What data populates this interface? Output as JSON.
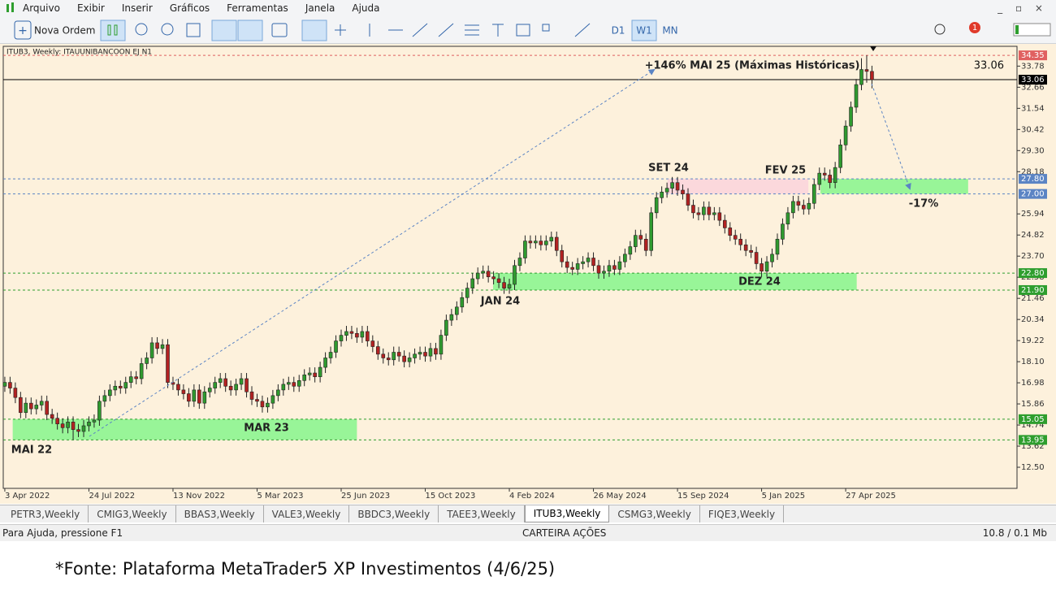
{
  "menu": [
    "Arquivo",
    "Exibir",
    "Inserir",
    "Gráficos",
    "Ferramentas",
    "Janela",
    "Ajuda"
  ],
  "toolbar": {
    "new_order": "Nova Ordem",
    "timeframes": [
      "D1",
      "W1",
      "MN"
    ],
    "notifications": "1"
  },
  "chart_data": {
    "type": "candlestick",
    "title": "ITUB3, Weekly:  ITAUUNIBANCOON  EJ  N1",
    "up_color": "#2f9a2f",
    "down_color": "#b22222",
    "open": [
      16.8,
      17.0,
      16.7,
      16.2,
      15.4,
      15.9,
      15.6,
      15.8,
      16.0,
      15.3,
      15.1,
      14.8,
      14.6,
      14.9,
      14.5,
      14.4,
      14.7,
      14.9,
      15.0,
      16.0,
      16.3,
      16.6,
      16.8,
      16.7,
      17.0,
      17.3,
      17.2,
      18.0,
      18.3,
      19.1,
      18.8,
      19.0,
      17.0,
      16.9,
      16.6,
      16.4,
      16.0,
      16.6,
      15.9,
      16.5,
      16.7,
      17.0,
      17.2,
      16.8,
      16.6,
      16.9,
      17.2,
      16.5,
      16.1,
      16.0,
      15.7,
      15.9,
      16.3,
      16.6,
      16.9,
      17.0,
      16.8,
      17.1,
      17.4,
      17.5,
      17.3,
      17.8,
      18.3,
      18.6,
      19.2,
      19.5,
      19.7,
      19.6,
      19.4,
      19.7,
      19.2,
      18.9,
      18.5,
      18.3,
      18.2,
      18.6,
      18.4,
      18.1,
      18.3,
      18.5,
      18.6,
      18.4,
      18.8,
      18.5,
      19.5,
      20.3,
      20.6,
      21.0,
      21.5,
      22.0,
      22.5,
      22.8,
      22.9,
      22.6,
      22.5,
      22.3,
      22.0,
      22.2,
      23.2,
      23.6,
      24.5,
      24.4,
      24.5,
      24.3,
      24.5,
      24.7,
      24.0,
      23.4,
      23.1,
      23.0,
      23.3,
      23.4,
      23.6,
      23.2,
      22.8,
      22.9,
      23.2,
      23.0,
      23.4,
      23.8,
      24.2,
      24.8,
      24.6,
      24.0,
      26.0,
      26.8,
      27.1,
      27.3,
      27.6,
      27.2,
      27.0,
      26.4,
      26.0,
      25.9,
      26.3,
      25.9,
      26.0,
      25.6,
      25.2,
      24.8,
      24.6,
      24.3,
      24.0,
      23.9,
      23.3,
      22.9,
      23.4,
      23.8,
      24.6,
      25.4,
      26.0,
      26.6,
      26.4,
      26.2,
      26.5,
      27.5,
      28.1,
      28.0,
      27.6,
      28.4,
      29.6,
      30.6,
      31.6,
      32.8,
      33.6,
      33.5
    ],
    "high": [
      17.3,
      17.3,
      17.0,
      16.5,
      16.2,
      16.2,
      16.1,
      16.3,
      16.3,
      15.6,
      15.4,
      15.1,
      15.2,
      15.2,
      14.8,
      15.0,
      15.2,
      15.3,
      16.3,
      16.6,
      16.9,
      17.1,
      17.1,
      17.3,
      17.6,
      17.6,
      18.3,
      18.6,
      19.4,
      19.4,
      19.3,
      19.3,
      17.3,
      17.2,
      16.9,
      16.7,
      16.9,
      16.9,
      16.8,
      17.0,
      17.3,
      17.5,
      17.5,
      17.1,
      17.2,
      17.5,
      17.5,
      16.8,
      16.4,
      16.3,
      16.2,
      16.6,
      16.9,
      17.2,
      17.3,
      17.3,
      17.4,
      17.7,
      17.8,
      17.8,
      18.1,
      18.6,
      18.9,
      19.5,
      19.8,
      20.0,
      20.0,
      19.9,
      20.0,
      20.0,
      19.5,
      19.2,
      18.8,
      18.6,
      18.9,
      18.9,
      18.7,
      18.6,
      18.8,
      18.9,
      18.9,
      19.1,
      19.1,
      19.8,
      20.6,
      20.9,
      21.3,
      21.8,
      22.3,
      22.8,
      23.1,
      23.2,
      23.2,
      22.9,
      22.8,
      22.6,
      22.5,
      23.5,
      23.9,
      24.8,
      24.8,
      24.8,
      24.8,
      24.8,
      25.0,
      25.0,
      24.3,
      23.7,
      23.4,
      23.6,
      23.7,
      23.9,
      23.9,
      23.5,
      23.2,
      23.5,
      23.5,
      23.7,
      24.1,
      24.5,
      25.1,
      25.1,
      24.9,
      26.3,
      27.1,
      27.4,
      27.6,
      27.9,
      27.9,
      27.5,
      27.3,
      26.7,
      26.3,
      26.6,
      26.6,
      26.3,
      26.3,
      25.9,
      25.5,
      25.1,
      24.9,
      24.6,
      24.3,
      24.2,
      23.6,
      23.7,
      24.1,
      24.9,
      25.7,
      26.3,
      26.9,
      26.9,
      26.7,
      26.8,
      27.8,
      28.4,
      28.4,
      28.3,
      28.7,
      29.9,
      30.9,
      31.9,
      33.1,
      34.2,
      34.35,
      33.8
    ],
    "low": [
      16.5,
      16.4,
      15.9,
      15.1,
      15.1,
      15.3,
      15.3,
      15.5,
      15.0,
      14.8,
      14.5,
      14.3,
      14.3,
      13.95,
      14.1,
      14.1,
      14.4,
      14.6,
      14.7,
      15.7,
      16.0,
      16.3,
      16.4,
      16.4,
      16.7,
      16.9,
      16.9,
      17.7,
      18.0,
      18.5,
      18.5,
      16.7,
      16.6,
      16.3,
      16.1,
      15.7,
      15.7,
      15.6,
      15.6,
      16.2,
      16.4,
      16.7,
      16.5,
      16.3,
      16.3,
      16.6,
      16.2,
      15.8,
      15.7,
      15.4,
      15.4,
      15.6,
      16.0,
      16.3,
      16.6,
      16.5,
      16.5,
      16.8,
      17.1,
      17.0,
      17.0,
      17.5,
      18.0,
      18.3,
      18.9,
      19.2,
      19.3,
      19.1,
      19.1,
      18.9,
      18.6,
      18.2,
      18.0,
      17.9,
      17.9,
      18.1,
      17.8,
      17.8,
      18.0,
      18.2,
      18.1,
      18.1,
      18.2,
      18.2,
      19.2,
      20.0,
      20.3,
      20.7,
      21.2,
      21.7,
      22.2,
      22.5,
      22.3,
      22.2,
      22.0,
      21.7,
      21.7,
      21.9,
      22.9,
      23.3,
      24.1,
      24.1,
      24.0,
      24.0,
      24.2,
      23.7,
      23.1,
      22.8,
      22.7,
      22.7,
      23.0,
      23.1,
      22.9,
      22.5,
      22.5,
      22.6,
      22.7,
      22.7,
      23.1,
      23.5,
      23.9,
      24.3,
      23.7,
      23.7,
      25.7,
      26.5,
      26.8,
      27.0,
      26.9,
      26.7,
      26.1,
      25.7,
      25.6,
      25.6,
      25.6,
      25.6,
      25.3,
      24.9,
      24.5,
      24.3,
      24.0,
      23.7,
      23.6,
      23.0,
      22.6,
      22.6,
      23.1,
      23.5,
      24.3,
      25.1,
      25.7,
      26.1,
      25.9,
      25.9,
      26.2,
      27.2,
      27.7,
      27.3,
      27.3,
      28.1,
      29.3,
      30.3,
      31.3,
      32.5,
      32.9,
      32.6
    ],
    "close": [
      17.0,
      16.7,
      16.2,
      15.4,
      15.9,
      15.6,
      15.8,
      16.0,
      15.3,
      15.1,
      14.8,
      14.6,
      14.9,
      14.5,
      14.4,
      14.7,
      14.9,
      15.0,
      16.0,
      16.3,
      16.6,
      16.8,
      16.7,
      17.0,
      17.3,
      17.2,
      18.0,
      18.3,
      19.1,
      18.8,
      19.0,
      17.0,
      16.9,
      16.6,
      16.4,
      16.0,
      16.6,
      15.9,
      16.5,
      16.7,
      17.0,
      17.2,
      16.8,
      16.6,
      16.9,
      17.2,
      16.5,
      16.1,
      16.0,
      15.7,
      15.9,
      16.3,
      16.6,
      16.9,
      17.0,
      16.8,
      17.1,
      17.4,
      17.5,
      17.3,
      17.8,
      18.3,
      18.6,
      19.2,
      19.5,
      19.7,
      19.6,
      19.4,
      19.7,
      19.2,
      18.9,
      18.5,
      18.3,
      18.2,
      18.6,
      18.4,
      18.1,
      18.3,
      18.5,
      18.6,
      18.4,
      18.8,
      18.5,
      19.5,
      20.3,
      20.6,
      21.0,
      21.5,
      22.0,
      22.5,
      22.8,
      22.9,
      22.6,
      22.5,
      22.3,
      22.0,
      22.2,
      23.2,
      23.6,
      24.5,
      24.4,
      24.5,
      24.3,
      24.5,
      24.7,
      24.0,
      23.4,
      23.1,
      23.0,
      23.3,
      23.4,
      23.6,
      23.2,
      22.8,
      22.9,
      23.2,
      23.0,
      23.4,
      23.8,
      24.2,
      24.8,
      24.6,
      24.0,
      26.0,
      26.8,
      27.1,
      27.3,
      27.6,
      27.2,
      27.0,
      26.4,
      26.0,
      25.9,
      26.3,
      25.9,
      26.0,
      25.6,
      25.2,
      24.8,
      24.6,
      24.3,
      24.0,
      23.9,
      23.3,
      22.9,
      23.4,
      23.8,
      24.6,
      25.4,
      26.0,
      26.6,
      26.4,
      26.2,
      26.5,
      27.5,
      28.1,
      28.0,
      27.6,
      28.4,
      29.6,
      30.6,
      31.6,
      32.8,
      33.6,
      33.5,
      33.06
    ],
    "xlim": [
      -0.3,
      192.6
    ],
    "xticks": [
      {
        "value": 0,
        "label": "3 Apr 2022"
      },
      {
        "value": 16,
        "label": "24 Jul 2022"
      },
      {
        "value": 32,
        "label": "13 Nov 2022"
      },
      {
        "value": 48,
        "label": "5 Mar 2023"
      },
      {
        "value": 64,
        "label": "25 Jun 2023"
      },
      {
        "value": 80,
        "label": "15 Oct 2023"
      },
      {
        "value": 96,
        "label": "4 Feb 2024"
      },
      {
        "value": 112,
        "label": "26 May 2024"
      },
      {
        "value": 128,
        "label": "15 Sep 2024"
      },
      {
        "value": 144,
        "label": "5 Jan 2025"
      },
      {
        "value": 160,
        "label": "27 Apr 2025"
      }
    ],
    "ylim": [
      11.38,
      34.83
    ],
    "yticks": [
      33.78,
      32.66,
      31.54,
      30.42,
      {
        "value": 29.3,
        "label": "29.30"
      },
      28.18,
      25.94,
      24.82,
      {
        "value": 23.7,
        "label": "23.70"
      },
      22.58,
      21.46,
      20.34,
      19.22,
      {
        "value": 18.1,
        "label": "18.10"
      },
      16.98,
      15.86,
      14.74,
      13.62,
      {
        "value": 12.5,
        "label": "12.50"
      }
    ],
    "levels": [
      {
        "value": 34.35,
        "color": "#e06060"
      },
      {
        "value": 33.06,
        "color": "#000000"
      },
      {
        "value": 27.8,
        "label": "27.80",
        "color": "#5b84c4"
      },
      {
        "value": 27.0,
        "label": "27.00",
        "color": "#5b84c4"
      },
      {
        "value": 22.8,
        "label": "22.80",
        "color": "#2e9e2e"
      },
      {
        "value": 21.9,
        "label": "21.90",
        "color": "#2e9e2e"
      },
      {
        "value": 15.05,
        "color": "#2e9e2e"
      },
      {
        "value": 13.95,
        "color": "#2e9e2e"
      }
    ],
    "annotations": [
      "+146% MAI 25 (Máximas Históricas)",
      "SET 24",
      "FEV 25",
      "-17%",
      "JAN 24",
      "DEZ 24",
      "MAR 23",
      "MAI 22"
    ]
  },
  "tabs": [
    "PETR3,Weekly",
    "CMIG3,Weekly",
    "BBAS3,Weekly",
    "VALE3,Weekly",
    "BBDC3,Weekly",
    "TAEE3,Weekly",
    "ITUB3,Weekly",
    "CSMG3,Weekly",
    "FIQE3,Weekly"
  ],
  "status": {
    "help": "Para Ajuda, pressione F1",
    "profile": "CARTEIRA AÇÕES",
    "traffic": "10.8 / 0.1 Mb"
  },
  "caption": "*Fonte: Plataforma MetaTrader5 XP Investimentos (4/6/25)"
}
